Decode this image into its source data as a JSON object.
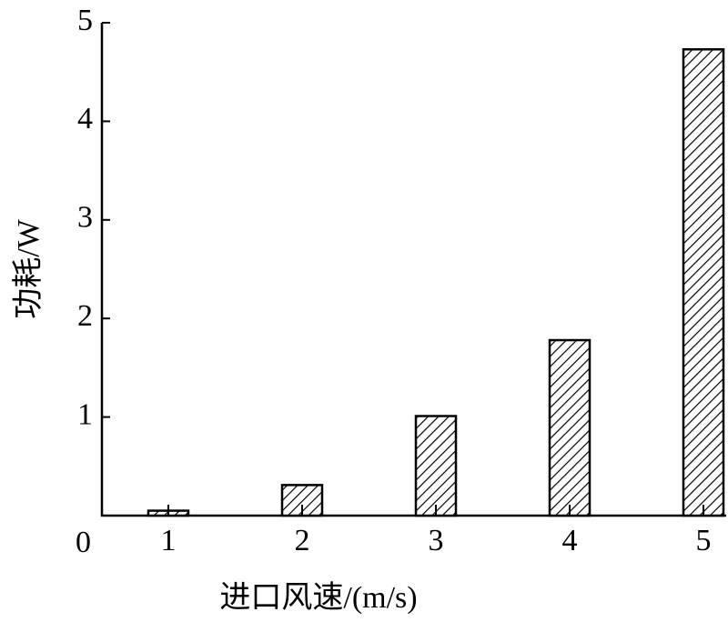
{
  "chart_data": {
    "type": "bar",
    "x_label": "进口风速/(m/s)",
    "y_label": "功耗/W",
    "categories": [
      "1",
      "2",
      "3",
      "4",
      "5"
    ],
    "values": [
      0.05,
      0.31,
      1.01,
      1.78,
      4.73
    ],
    "color": "#000000",
    "ylim": [
      0,
      5
    ],
    "yticks": [
      0,
      1,
      2,
      3,
      4,
      5
    ]
  }
}
